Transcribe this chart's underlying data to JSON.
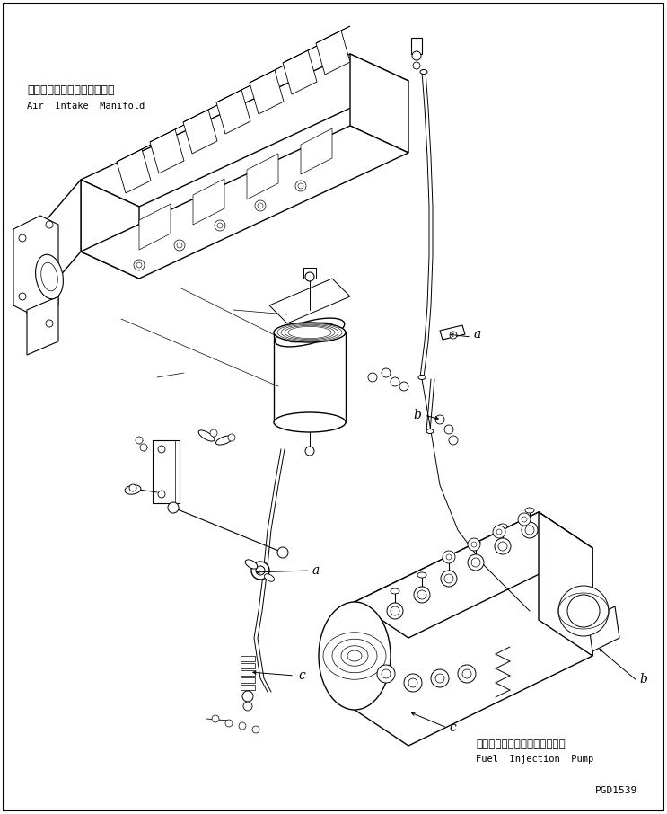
{
  "background_color": "#ffffff",
  "border_color": "#000000",
  "labels": {
    "japanese_manifold": "エアーインテークマニホルド",
    "english_manifold": "Air  Intake  Manifold",
    "japanese_pump": "フェルインジェクションポンプ",
    "english_pump": "Fuel  Injection  Pump",
    "part_id": "PGD1539"
  }
}
